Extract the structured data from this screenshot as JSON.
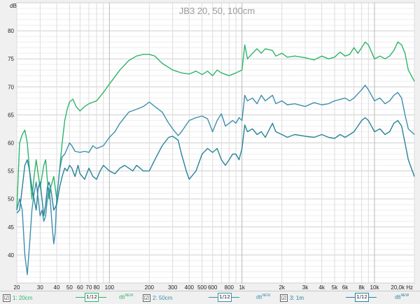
{
  "chart_data": {
    "type": "line",
    "title": "JB3 20, 50, 100cm",
    "xscale": "log",
    "xlim": [
      20,
      20000
    ],
    "ylim": [
      35,
      85
    ],
    "ylabel_unit": "dB",
    "grid": true,
    "y_ticks": [
      "40",
      "45",
      "50",
      "55",
      "60",
      "65",
      "70",
      "75",
      "80"
    ],
    "x_ticks": [
      {
        "v": 20,
        "label": "20"
      },
      {
        "v": 30,
        "label": "30"
      },
      {
        "v": 40,
        "label": "40"
      },
      {
        "v": 50,
        "label": "50"
      },
      {
        "v": 60,
        "label": "60"
      },
      {
        "v": 70,
        "label": "70"
      },
      {
        "v": 80,
        "label": "80"
      },
      {
        "v": 100,
        "label": "100"
      },
      {
        "v": 200,
        "label": "200"
      },
      {
        "v": 300,
        "label": "300"
      },
      {
        "v": 400,
        "label": "400"
      },
      {
        "v": 500,
        "label": "500"
      },
      {
        "v": 600,
        "label": "600"
      },
      {
        "v": 800,
        "label": "800"
      },
      {
        "v": 1000,
        "label": "1k"
      },
      {
        "v": 2000,
        "label": "2k"
      },
      {
        "v": 3000,
        "label": "3k"
      },
      {
        "v": 4000,
        "label": "4k"
      },
      {
        "v": 5000,
        "label": "5k"
      },
      {
        "v": 6000,
        "label": "6k"
      },
      {
        "v": 8000,
        "label": "8k"
      },
      {
        "v": 10000,
        "label": "10k"
      },
      {
        "v": 20000,
        "label": "20,0k Hz"
      }
    ],
    "series": [
      {
        "name": "1: 20cm",
        "color": "#2db56a",
        "points": [
          [
            20,
            48
          ],
          [
            21,
            60
          ],
          [
            22,
            61.5
          ],
          [
            23,
            62.3
          ],
          [
            24,
            60
          ],
          [
            25,
            55
          ],
          [
            26,
            50
          ],
          [
            27,
            54
          ],
          [
            28,
            57
          ],
          [
            30,
            52
          ],
          [
            32,
            56
          ],
          [
            33,
            57
          ],
          [
            35,
            50
          ],
          [
            36,
            52
          ],
          [
            38,
            54
          ],
          [
            40,
            50
          ],
          [
            42,
            55
          ],
          [
            44,
            60
          ],
          [
            46,
            64
          ],
          [
            48,
            66
          ],
          [
            50,
            67.3
          ],
          [
            53,
            67.8
          ],
          [
            56,
            66.5
          ],
          [
            60,
            65.7
          ],
          [
            65,
            66.5
          ],
          [
            70,
            67
          ],
          [
            80,
            67.5
          ],
          [
            90,
            69
          ],
          [
            100,
            70.5
          ],
          [
            120,
            73
          ],
          [
            140,
            74.7
          ],
          [
            160,
            75.5
          ],
          [
            180,
            75.8
          ],
          [
            200,
            75.8
          ],
          [
            220,
            75.5
          ],
          [
            250,
            74.2
          ],
          [
            300,
            73
          ],
          [
            350,
            72.5
          ],
          [
            400,
            72.3
          ],
          [
            450,
            72.8
          ],
          [
            500,
            72.2
          ],
          [
            550,
            72.8
          ],
          [
            600,
            72
          ],
          [
            650,
            73
          ],
          [
            700,
            72.5
          ],
          [
            800,
            72
          ],
          [
            900,
            72.5
          ],
          [
            1000,
            73
          ],
          [
            1050,
            77.5
          ],
          [
            1100,
            75
          ],
          [
            1200,
            76
          ],
          [
            1300,
            76.8
          ],
          [
            1400,
            76
          ],
          [
            1500,
            76.8
          ],
          [
            1700,
            76.5
          ],
          [
            1800,
            75.5
          ],
          [
            2000,
            76
          ],
          [
            2200,
            75.3
          ],
          [
            2500,
            75.5
          ],
          [
            3000,
            75.2
          ],
          [
            3500,
            74.8
          ],
          [
            4000,
            75.5
          ],
          [
            4500,
            75
          ],
          [
            5000,
            75.3
          ],
          [
            5500,
            76.2
          ],
          [
            6000,
            75.5
          ],
          [
            6500,
            75.8
          ],
          [
            7000,
            77
          ],
          [
            7500,
            76
          ],
          [
            8000,
            77
          ],
          [
            8500,
            78
          ],
          [
            9000,
            77.5
          ],
          [
            10000,
            75
          ],
          [
            11000,
            75.5
          ],
          [
            12000,
            75
          ],
          [
            13000,
            75.5
          ],
          [
            14000,
            76.5
          ],
          [
            15000,
            78
          ],
          [
            16000,
            77.5
          ],
          [
            17000,
            76
          ],
          [
            18000,
            73
          ],
          [
            20000,
            71
          ]
        ]
      },
      {
        "name": "2: 50cm",
        "color": "#3d8fae",
        "points": [
          [
            20,
            48
          ],
          [
            21,
            50
          ],
          [
            22,
            48
          ],
          [
            23,
            40
          ],
          [
            24,
            36.5
          ],
          [
            25,
            42
          ],
          [
            26,
            48
          ],
          [
            27,
            51
          ],
          [
            28,
            53
          ],
          [
            29,
            50
          ],
          [
            30,
            47
          ],
          [
            31,
            48
          ],
          [
            32,
            46
          ],
          [
            33,
            47
          ],
          [
            34,
            50
          ],
          [
            35,
            52
          ],
          [
            36,
            49
          ],
          [
            37,
            45
          ],
          [
            38,
            42
          ],
          [
            39,
            44
          ],
          [
            40,
            50
          ],
          [
            42,
            55
          ],
          [
            44,
            57.5
          ],
          [
            46,
            58
          ],
          [
            48,
            59
          ],
          [
            50,
            60
          ],
          [
            52,
            59.5
          ],
          [
            55,
            58.5
          ],
          [
            60,
            58.3
          ],
          [
            65,
            58.5
          ],
          [
            70,
            58.3
          ],
          [
            75,
            59.5
          ],
          [
            80,
            59
          ],
          [
            90,
            59.5
          ],
          [
            100,
            61
          ],
          [
            110,
            62
          ],
          [
            120,
            63.5
          ],
          [
            140,
            65.5
          ],
          [
            160,
            66
          ],
          [
            180,
            66.5
          ],
          [
            200,
            67.3
          ],
          [
            220,
            66.5
          ],
          [
            250,
            65.5
          ],
          [
            280,
            63.5
          ],
          [
            300,
            62.5
          ],
          [
            330,
            61.3
          ],
          [
            350,
            62
          ],
          [
            400,
            64
          ],
          [
            450,
            64.5
          ],
          [
            500,
            64.8
          ],
          [
            550,
            64.3
          ],
          [
            600,
            62
          ],
          [
            650,
            64
          ],
          [
            700,
            65.2
          ],
          [
            750,
            63
          ],
          [
            800,
            63.5
          ],
          [
            850,
            64
          ],
          [
            900,
            63.5
          ],
          [
            950,
            64.5
          ],
          [
            1000,
            64
          ],
          [
            1050,
            68.5
          ],
          [
            1100,
            67.5
          ],
          [
            1200,
            68
          ],
          [
            1300,
            67
          ],
          [
            1400,
            68.5
          ],
          [
            1500,
            67.5
          ],
          [
            1700,
            68.5
          ],
          [
            1800,
            67
          ],
          [
            2000,
            67.5
          ],
          [
            2200,
            66.8
          ],
          [
            2500,
            67
          ],
          [
            3000,
            66.5
          ],
          [
            3500,
            67.2
          ],
          [
            4000,
            66.8
          ],
          [
            4500,
            67
          ],
          [
            5000,
            67.5
          ],
          [
            6000,
            68
          ],
          [
            6500,
            67.5
          ],
          [
            7000,
            68
          ],
          [
            8000,
            69.5
          ],
          [
            8500,
            70.3
          ],
          [
            9000,
            69.5
          ],
          [
            10000,
            67.5
          ],
          [
            11000,
            68
          ],
          [
            12000,
            67
          ],
          [
            13000,
            67.5
          ],
          [
            14000,
            68.5
          ],
          [
            15000,
            69
          ],
          [
            16000,
            68
          ],
          [
            17000,
            65
          ],
          [
            18000,
            62.5
          ],
          [
            20000,
            61.5
          ]
        ]
      },
      {
        "name": "3: 1m",
        "color": "#27839a",
        "points": [
          [
            20,
            47.5
          ],
          [
            21,
            48
          ],
          [
            22,
            52
          ],
          [
            23,
            56
          ],
          [
            24,
            57
          ],
          [
            25,
            55
          ],
          [
            26,
            52
          ],
          [
            27,
            50
          ],
          [
            28,
            48
          ],
          [
            29,
            52
          ],
          [
            30,
            53
          ],
          [
            31,
            50
          ],
          [
            32,
            47
          ],
          [
            33,
            49
          ],
          [
            34,
            52
          ],
          [
            35,
            53
          ],
          [
            36,
            52
          ],
          [
            37,
            50
          ],
          [
            38,
            48
          ],
          [
            40,
            49
          ],
          [
            42,
            52
          ],
          [
            44,
            54
          ],
          [
            46,
            55.5
          ],
          [
            48,
            55
          ],
          [
            50,
            56
          ],
          [
            52,
            55.5
          ],
          [
            55,
            54
          ],
          [
            58,
            56
          ],
          [
            60,
            54.5
          ],
          [
            65,
            53.5
          ],
          [
            70,
            55.5
          ],
          [
            75,
            54
          ],
          [
            80,
            53.5
          ],
          [
            85,
            55
          ],
          [
            90,
            56
          ],
          [
            100,
            55
          ],
          [
            110,
            54.5
          ],
          [
            120,
            55.5
          ],
          [
            130,
            56
          ],
          [
            140,
            55.5
          ],
          [
            150,
            55
          ],
          [
            160,
            56
          ],
          [
            170,
            55.5
          ],
          [
            180,
            55
          ],
          [
            200,
            55
          ],
          [
            220,
            57
          ],
          [
            250,
            59.5
          ],
          [
            280,
            61
          ],
          [
            300,
            61.2
          ],
          [
            330,
            60.5
          ],
          [
            350,
            58
          ],
          [
            380,
            55
          ],
          [
            400,
            53.5
          ],
          [
            450,
            55
          ],
          [
            500,
            58
          ],
          [
            550,
            59
          ],
          [
            600,
            58.3
          ],
          [
            650,
            59
          ],
          [
            700,
            57
          ],
          [
            750,
            56
          ],
          [
            800,
            57
          ],
          [
            850,
            58
          ],
          [
            900,
            58
          ],
          [
            950,
            57
          ],
          [
            1000,
            59
          ],
          [
            1050,
            63.2
          ],
          [
            1100,
            62
          ],
          [
            1200,
            62.5
          ],
          [
            1300,
            61.5
          ],
          [
            1400,
            62
          ],
          [
            1500,
            61
          ],
          [
            1700,
            63.5
          ],
          [
            1800,
            62
          ],
          [
            2000,
            61.5
          ],
          [
            2200,
            61
          ],
          [
            2500,
            61.5
          ],
          [
            3000,
            61.2
          ],
          [
            3500,
            61
          ],
          [
            4000,
            61.5
          ],
          [
            4500,
            61
          ],
          [
            5000,
            60.8
          ],
          [
            5500,
            61.5
          ],
          [
            6000,
            61
          ],
          [
            6500,
            61.5
          ],
          [
            7000,
            62
          ],
          [
            7500,
            63
          ],
          [
            8000,
            64
          ],
          [
            8500,
            64.5
          ],
          [
            9000,
            64
          ],
          [
            10000,
            62
          ],
          [
            11000,
            62.5
          ],
          [
            12000,
            61.5
          ],
          [
            13000,
            62
          ],
          [
            14000,
            63.5
          ],
          [
            15000,
            64
          ],
          [
            16000,
            63
          ],
          [
            17000,
            60
          ],
          [
            18000,
            57
          ],
          [
            20000,
            54
          ]
        ]
      }
    ]
  },
  "legend": {
    "items": [
      {
        "label": "1: 20cm",
        "check": "☑",
        "smooth": "1/12",
        "dbnew": "dB",
        "dbnew_sup": "NEW",
        "color": "#2db56a"
      },
      {
        "label": "2: 50cm",
        "check": "☑",
        "smooth": "1/12",
        "dbnew": "dB",
        "dbnew_sup": "NEW",
        "color": "#3d8fae"
      },
      {
        "label": "3: 1m",
        "check": "☑",
        "smooth": "1/12",
        "dbnew": "dB",
        "dbnew_sup": "NEW",
        "color": "#27839a"
      }
    ]
  }
}
